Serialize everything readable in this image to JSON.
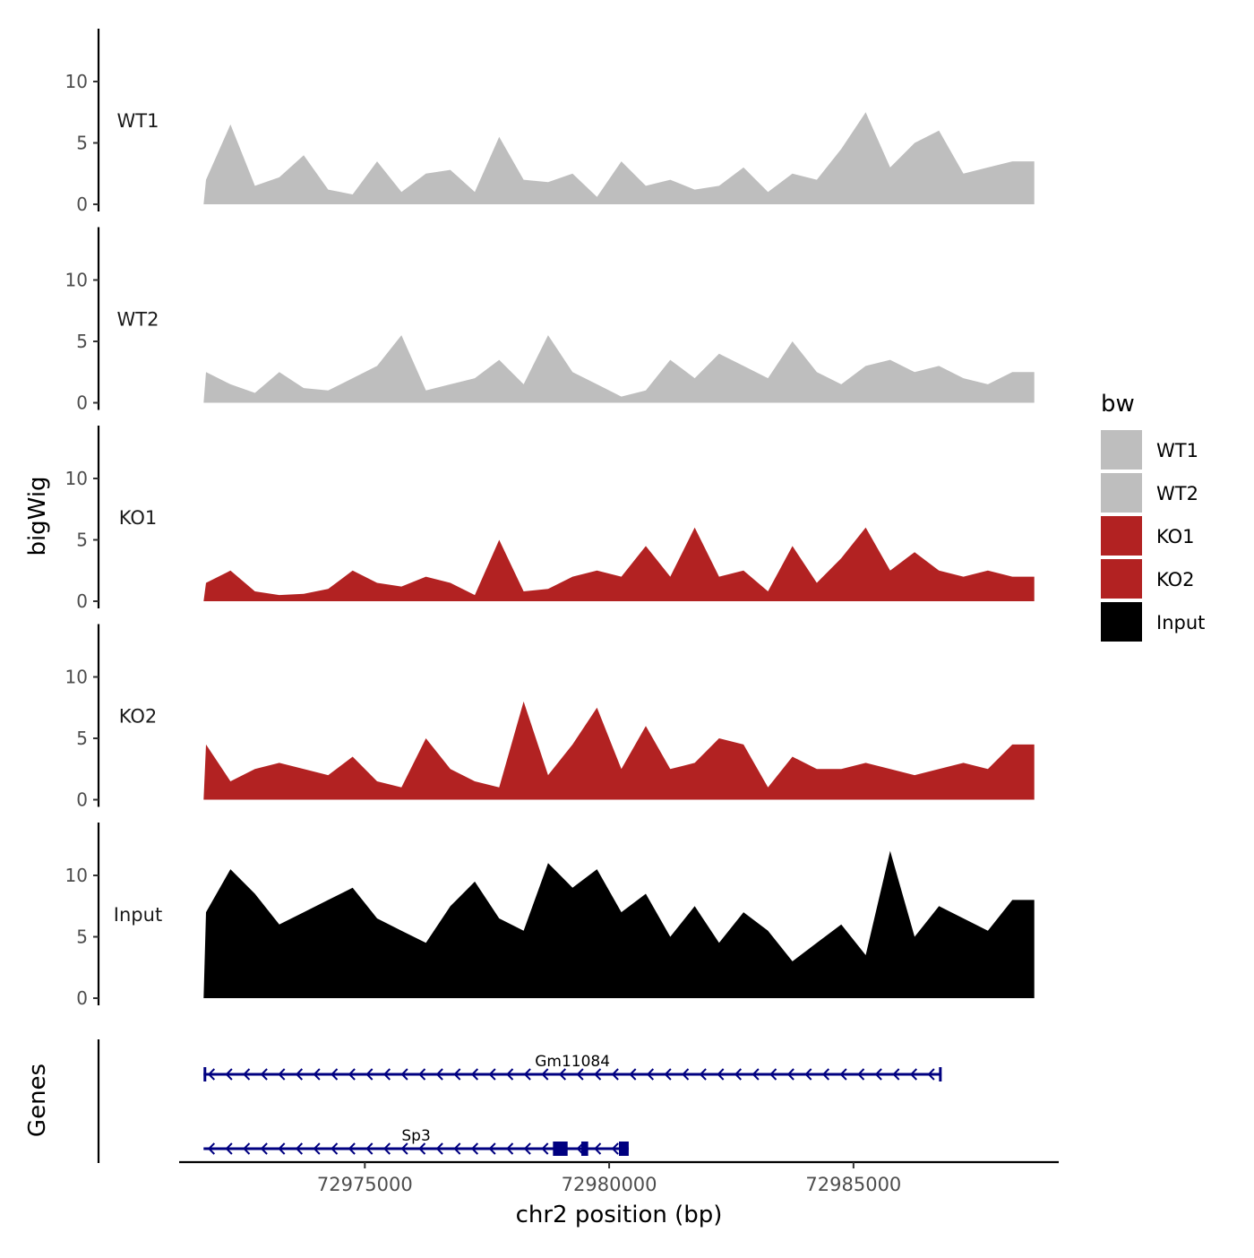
{
  "chart_data": {
    "type": "area",
    "title": "",
    "ylabel": "bigWig",
    "xlabel": "chr2 position (bp)",
    "xlim": [
      72971200,
      72989200
    ],
    "ylim": [
      0,
      14
    ],
    "yticks": [
      0,
      5,
      10
    ],
    "xticks": [
      72975000,
      72980000,
      72985000
    ],
    "xtick_labels": [
      "72975000",
      "72980000",
      "72985000"
    ],
    "legend": {
      "title": "bw",
      "position": "right",
      "entries": [
        {
          "label": "WT1",
          "color": "#bebebe"
        },
        {
          "label": "WT2",
          "color": "#bebebe"
        },
        {
          "label": "KO1",
          "color": "#b22222"
        },
        {
          "label": "KO2",
          "color": "#b22222"
        },
        {
          "label": "Input",
          "color": "#000000"
        }
      ]
    },
    "x": [
      72971750,
      72972250,
      72972750,
      72973250,
      72973750,
      72974250,
      72974750,
      72975250,
      72975750,
      72976250,
      72976750,
      72977250,
      72977750,
      72978250,
      72978750,
      72979250,
      72979750,
      72980250,
      72980750,
      72981250,
      72981750,
      72982250,
      72982750,
      72983250,
      72983750,
      72984250,
      72984750,
      72985250,
      72985750,
      72986250,
      72986750,
      72987250,
      72987750,
      72988250
    ],
    "series": [
      {
        "name": "WT1",
        "color": "#bebebe",
        "values": [
          2.0,
          6.5,
          1.5,
          2.2,
          4.0,
          1.2,
          0.8,
          3.5,
          1.0,
          2.5,
          2.8,
          1.0,
          5.5,
          2.0,
          1.8,
          2.5,
          0.6,
          3.5,
          1.5,
          2.0,
          1.2,
          1.5,
          3.0,
          1.0,
          2.5,
          2.0,
          4.5,
          7.5,
          3.0,
          5.0,
          6.0,
          2.5,
          3.0,
          3.5
        ]
      },
      {
        "name": "WT2",
        "color": "#bebebe",
        "values": [
          2.5,
          1.5,
          0.8,
          2.5,
          1.2,
          1.0,
          2.0,
          3.0,
          5.5,
          1.0,
          1.5,
          2.0,
          3.5,
          1.5,
          5.5,
          2.5,
          1.5,
          0.5,
          1.0,
          3.5,
          2.0,
          4.0,
          3.0,
          2.0,
          5.0,
          2.5,
          1.5,
          3.0,
          3.5,
          2.5,
          3.0,
          2.0,
          1.5,
          2.5
        ]
      },
      {
        "name": "KO1",
        "color": "#b22222",
        "values": [
          1.5,
          2.5,
          0.8,
          0.5,
          0.6,
          1.0,
          2.5,
          1.5,
          1.2,
          2.0,
          1.5,
          0.5,
          5.0,
          0.8,
          1.0,
          2.0,
          2.5,
          2.0,
          4.5,
          2.0,
          6.0,
          2.0,
          2.5,
          0.8,
          4.5,
          1.5,
          3.5,
          6.0,
          2.5,
          4.0,
          2.5,
          2.0,
          2.5,
          2.0
        ]
      },
      {
        "name": "KO2",
        "color": "#b22222",
        "values": [
          4.5,
          1.5,
          2.5,
          3.0,
          2.5,
          2.0,
          3.5,
          1.5,
          1.0,
          5.0,
          2.5,
          1.5,
          1.0,
          8.0,
          2.0,
          4.5,
          7.5,
          2.5,
          6.0,
          2.5,
          3.0,
          5.0,
          4.5,
          1.0,
          3.5,
          2.5,
          2.5,
          3.0,
          2.5,
          2.0,
          2.5,
          3.0,
          2.5,
          4.5
        ]
      },
      {
        "name": "Input",
        "color": "#000000",
        "values": [
          7.0,
          10.5,
          8.5,
          6.0,
          7.0,
          8.0,
          9.0,
          6.5,
          5.5,
          4.5,
          7.5,
          9.5,
          6.5,
          5.5,
          11.0,
          9.0,
          10.5,
          7.0,
          8.5,
          5.0,
          7.5,
          4.5,
          7.0,
          5.5,
          3.0,
          4.5,
          6.0,
          3.5,
          12.0,
          5.0,
          7.5,
          6.5,
          5.5,
          8.0
        ]
      }
    ],
    "genes_track": {
      "label": "Genes",
      "genes": [
        {
          "name": "Gm11084",
          "start": 72971700,
          "end": 72986800,
          "strand": "-",
          "exons": [
            [
              72971700,
              72971720
            ],
            [
              72986750,
              72986800
            ]
          ]
        },
        {
          "name": "Sp3",
          "start": 72971700,
          "end": 72980400,
          "strand": "-",
          "exons": [
            [
              72978850,
              72979150
            ],
            [
              72979430,
              72979570
            ],
            [
              72980200,
              72980400
            ]
          ]
        }
      ]
    }
  }
}
